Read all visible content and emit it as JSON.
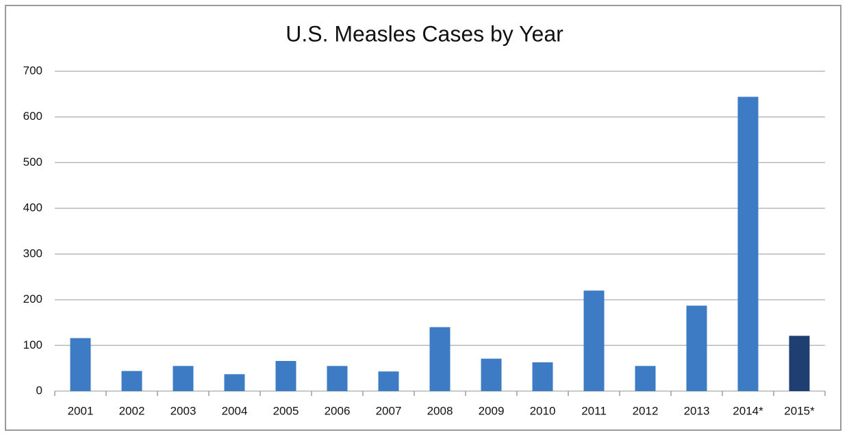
{
  "chart_data": {
    "type": "bar",
    "title": "U.S. Measles Cases by Year",
    "categories": [
      "2001",
      "2002",
      "2003",
      "2004",
      "2005",
      "2006",
      "2007",
      "2008",
      "2009",
      "2010",
      "2011",
      "2012",
      "2013",
      "2014*",
      "2015*"
    ],
    "values": [
      116,
      44,
      55,
      37,
      66,
      55,
      43,
      140,
      71,
      63,
      220,
      55,
      187,
      644,
      121
    ],
    "colors": [
      "#3d7bc4",
      "#3d7bc4",
      "#3d7bc4",
      "#3d7bc4",
      "#3d7bc4",
      "#3d7bc4",
      "#3d7bc4",
      "#3d7bc4",
      "#3d7bc4",
      "#3d7bc4",
      "#3d7bc4",
      "#3d7bc4",
      "#3d7bc4",
      "#3d7bc4",
      "#1f3f73"
    ],
    "ylim": [
      0,
      700
    ],
    "yticks": [
      0,
      100,
      200,
      300,
      400,
      500,
      600,
      700
    ],
    "grid": true
  }
}
